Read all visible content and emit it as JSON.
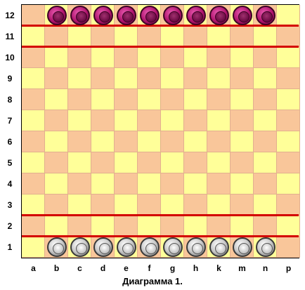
{
  "board": {
    "files": [
      "a",
      "b",
      "c",
      "d",
      "e",
      "f",
      "g",
      "h",
      "k",
      "m",
      "n",
      "p"
    ],
    "ranks": [
      "12",
      "11",
      "10",
      "9",
      "8",
      "7",
      "6",
      "5",
      "4",
      "3",
      "2",
      "1"
    ],
    "colors": {
      "light": "#ffff99",
      "dark": "#f9c69a",
      "line": "#d40000"
    },
    "red_lines_after_ranks_from_top": [
      1,
      2,
      10,
      11
    ]
  },
  "pieces": {
    "top": {
      "rank": "12",
      "files": [
        "b",
        "c",
        "d",
        "e",
        "f",
        "g",
        "h",
        "k",
        "m",
        "n"
      ],
      "color": "#b0146e",
      "icon": "magenta-checker-icon"
    },
    "bottom": {
      "rank": "1",
      "files": [
        "b",
        "c",
        "d",
        "e",
        "f",
        "g",
        "h",
        "k",
        "m",
        "n"
      ],
      "color": "#9a9a9a",
      "icon": "gray-checker-icon"
    }
  },
  "caption": "Диаграмма 1."
}
